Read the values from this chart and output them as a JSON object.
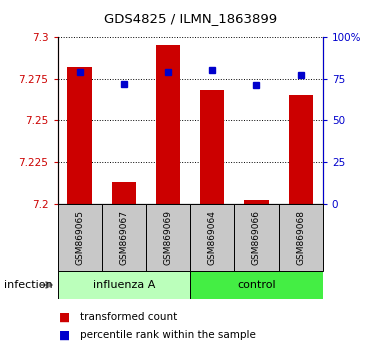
{
  "title": "GDS4825 / ILMN_1863899",
  "samples": [
    "GSM869065",
    "GSM869067",
    "GSM869069",
    "GSM869064",
    "GSM869066",
    "GSM869068"
  ],
  "bar_values": [
    7.282,
    7.213,
    7.295,
    7.268,
    7.202,
    7.265
  ],
  "percentile_values": [
    79,
    72,
    79,
    80,
    71,
    77
  ],
  "ymin": 7.2,
  "ymax": 7.3,
  "yticks": [
    7.2,
    7.225,
    7.25,
    7.275,
    7.3
  ],
  "ytick_labels": [
    "7.2",
    "7.225",
    "7.25",
    "7.275",
    "7.3"
  ],
  "y2ticks": [
    0,
    25,
    50,
    75,
    100
  ],
  "y2tick_labels": [
    "0",
    "25",
    "50",
    "75",
    "100%"
  ],
  "bar_color": "#cc0000",
  "dot_color": "#0000cc",
  "bar_bottom": 7.2,
  "group_labels": [
    "influenza A",
    "control"
  ],
  "infection_label": "infection",
  "legend_items": [
    "transformed count",
    "percentile rank within the sample"
  ],
  "legend_colors": [
    "#cc0000",
    "#0000cc"
  ],
  "title_color": "#000000",
  "left_axis_color": "#cc0000",
  "right_axis_color": "#0000cc",
  "n_influenza": 3,
  "n_control": 3,
  "cell_bg_color": "#c8c8c8",
  "influenza_bg": "#bbffbb",
  "control_bg": "#44ee44"
}
